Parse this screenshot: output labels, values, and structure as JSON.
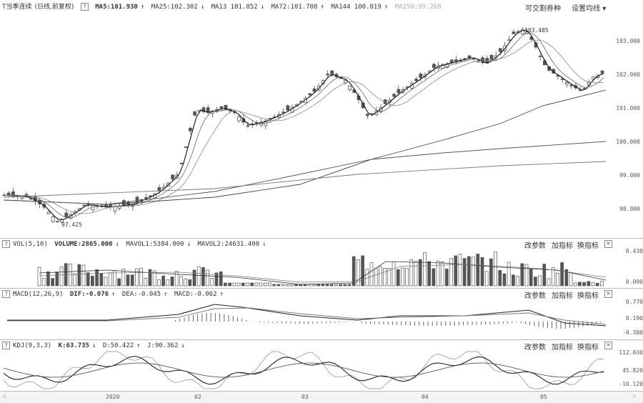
{
  "main": {
    "ma_names": [
      "MA5",
      "MA25",
      "MA13",
      "MA72",
      "MA144",
      "MA250"
    ],
    "title": "T当季连续",
    "subtitle": "(日线,前复权)",
    "ma5": "MA5:101.930",
    "ma25": "MA25:102.302",
    "ma13": "MA13 101.852",
    "ma72": "MA72:101.708",
    "ma144": "MA144 100.019",
    "ma250": "MA250:99.268",
    "arrow_up": "↑",
    "arrow_down": "↓",
    "right_link1": "可交割券种",
    "right_link2": "设置均线",
    "high_label": "103.485",
    "low_label": "97.425",
    "y_ticks": [
      "103.000",
      "102.000",
      "101.000",
      "100.000",
      "99.000",
      "98.000"
    ]
  },
  "vol": {
    "header": "VOL(5,10)",
    "volume": "VOLUME:2865.000",
    "mavol1": "MAVOL1:5384.000",
    "mavol2": "MAVOL2:24631.400",
    "y_top": "0.430",
    "y_zero": "0.000",
    "btn_params": "改参数",
    "btn_add": "加指标",
    "btn_swap": "换指标"
  },
  "macd": {
    "header": "MACD(12,26,9)",
    "dif": "DIF:-0.076",
    "dea": "DEA:-0.045",
    "macd": "MACD:-0.062",
    "y_ticks": [
      "0.770",
      "0.190",
      "-0.380"
    ],
    "btn_params": "改参数",
    "btn_add": "加指标",
    "btn_swap": "换指标"
  },
  "kdj": {
    "header": "KDJ(9,3,3)",
    "k": "K:63.735",
    "d": "D:50.422",
    "j": "J:90.362",
    "y_ticks": [
      "112.030",
      "45.820",
      "-10.120"
    ],
    "btn_params": "改参数",
    "btn_add": "加指标",
    "btn_swap": "换指标"
  },
  "x_axis": {
    "labels": [
      "2020",
      "02",
      "03",
      "04",
      "05"
    ]
  },
  "close_glyph": "✕",
  "q_glyph": "?",
  "scroll_left": "◁",
  "scroll_right": "▷",
  "dropdown_glyph": "▾",
  "colors": {
    "up": "#555555",
    "down": "#888888",
    "grid": "#dddddd"
  }
}
